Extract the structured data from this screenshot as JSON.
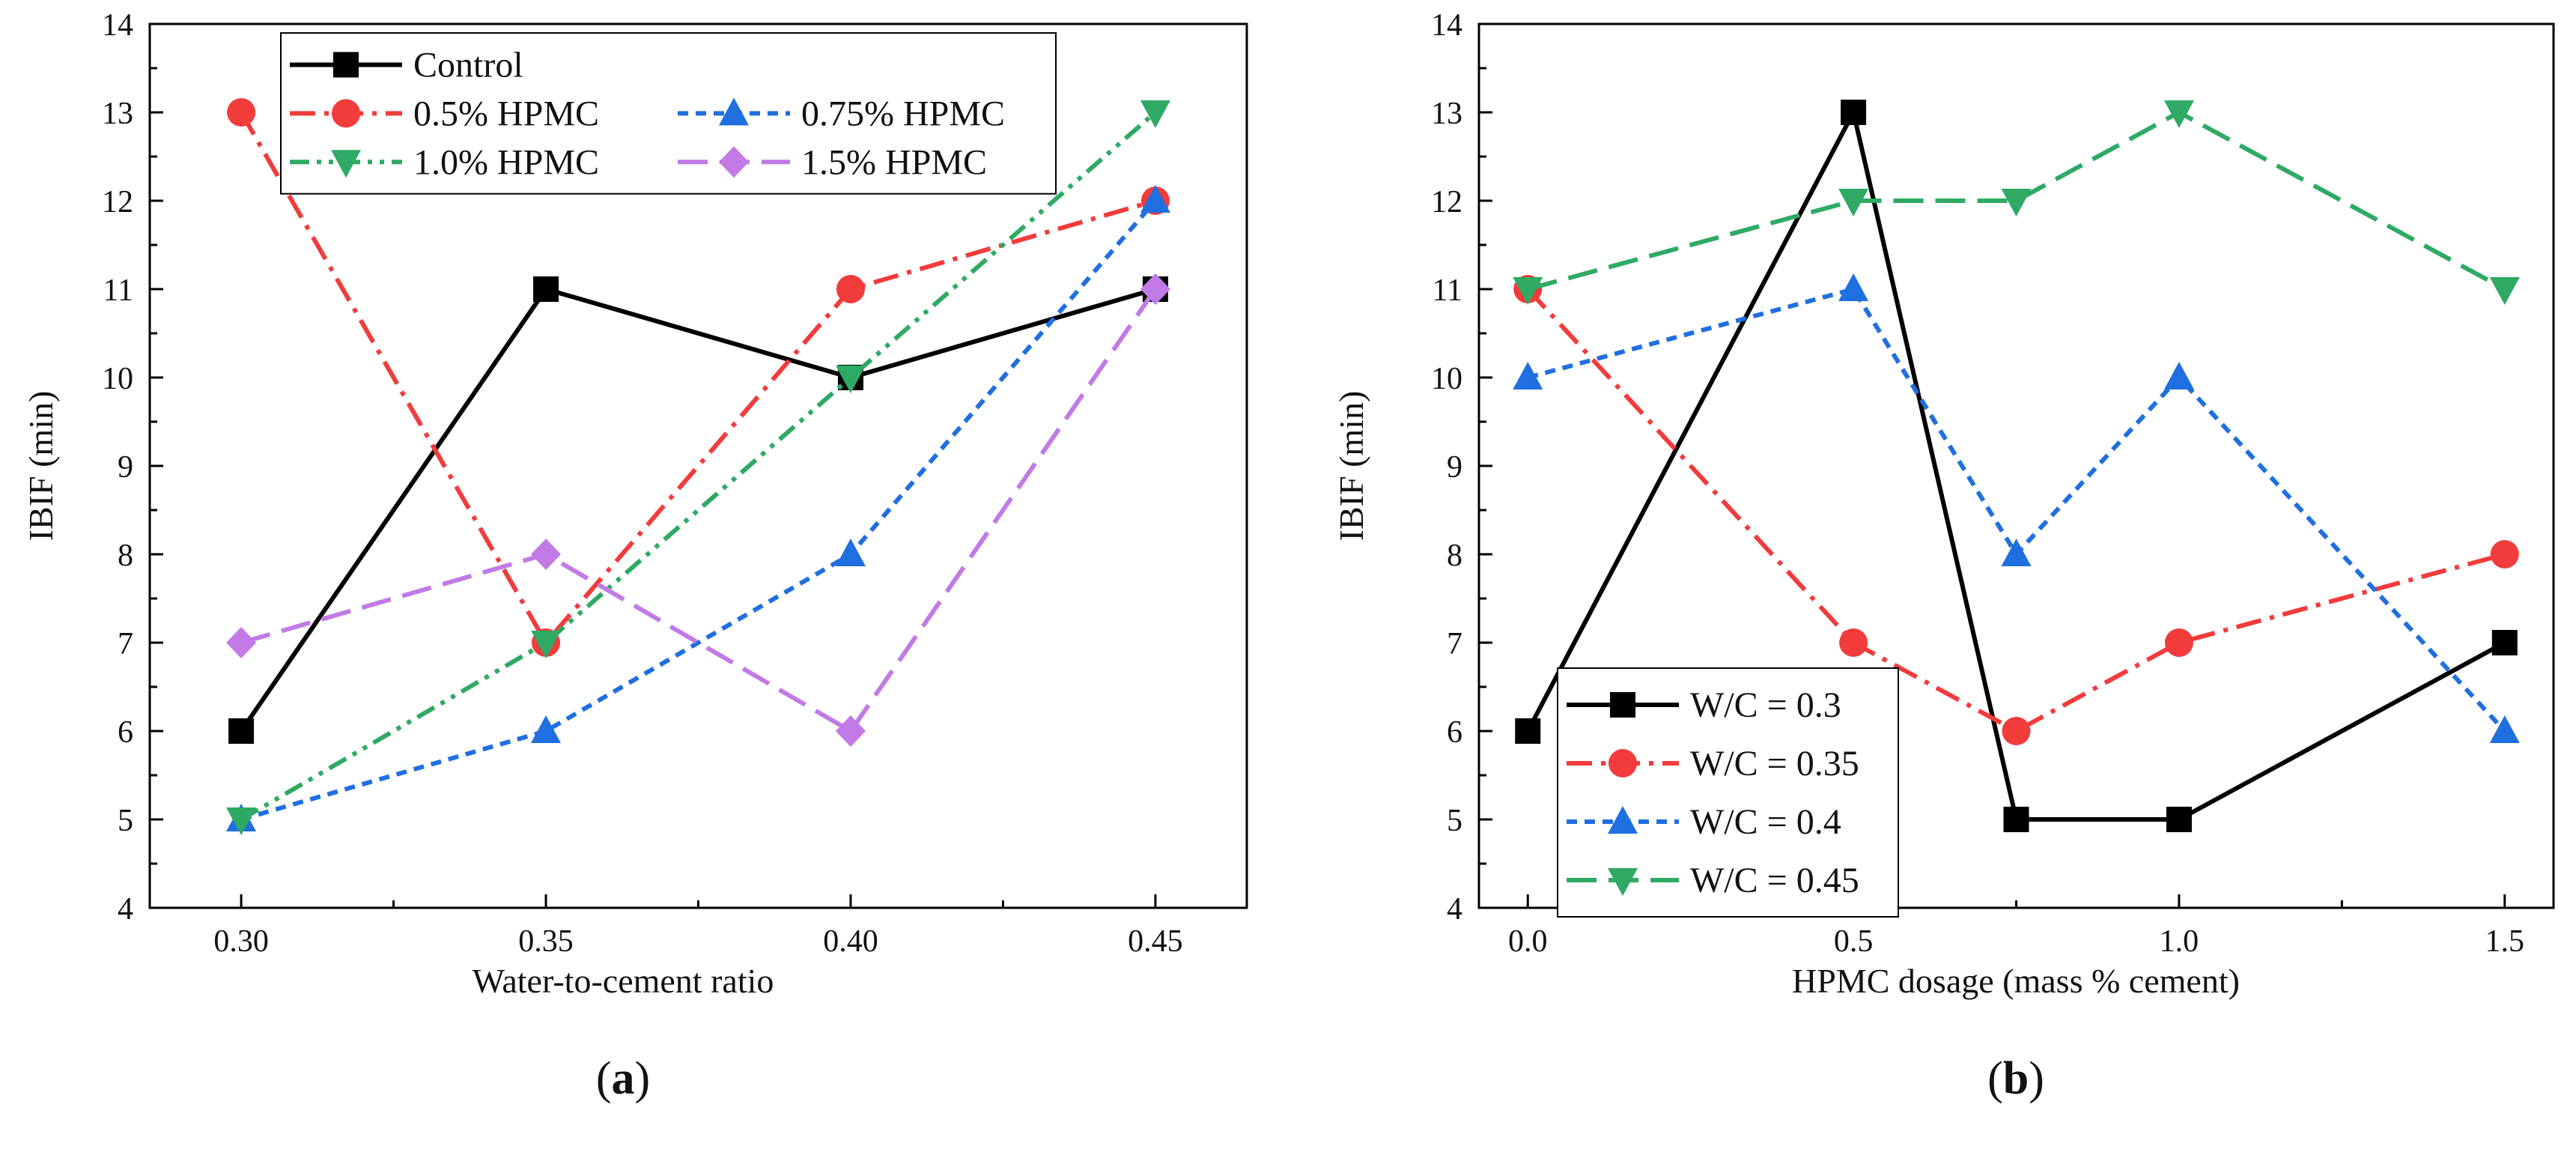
{
  "chart_data": [
    {
      "type": "line",
      "panel": "a",
      "panel_label": "a",
      "xlabel": "Water-to-cement ratio",
      "ylabel": "IBIF (min)",
      "xlim": [
        0.285,
        0.465
      ],
      "ylim": [
        4,
        14
      ],
      "xticks": [
        "0.30",
        "0.35",
        "0.40",
        "0.45"
      ],
      "xtick_values": [
        0.3,
        0.35,
        0.4,
        0.45
      ],
      "yticks": [
        "4",
        "5",
        "6",
        "7",
        "8",
        "9",
        "10",
        "11",
        "12",
        "13",
        "14"
      ],
      "ytick_values": [
        4,
        5,
        6,
        7,
        8,
        9,
        10,
        11,
        12,
        13,
        14
      ],
      "legend_position": "top-center",
      "x": [
        0.3,
        0.35,
        0.4,
        0.45
      ],
      "series": [
        {
          "name": "Control",
          "values": [
            6,
            11,
            10,
            11
          ],
          "color": "#000000",
          "marker": "square",
          "dash": "solid"
        },
        {
          "name": "0.5% HPMC",
          "values": [
            13,
            7,
            11,
            12
          ],
          "color": "#f23b3b",
          "marker": "circle",
          "dash": "dashdot"
        },
        {
          "name": "0.75% HPMC",
          "values": [
            5,
            6,
            8,
            12
          ],
          "color": "#1f6fe0",
          "marker": "triangle-up",
          "dash": "shortdash"
        },
        {
          "name": "1.0% HPMC",
          "values": [
            5,
            7,
            10,
            13
          ],
          "color": "#2eaa64",
          "marker": "triangle-down",
          "dash": "dashdotdot"
        },
        {
          "name": "1.5% HPMC",
          "values": [
            7,
            8,
            6,
            11
          ],
          "color": "#c27ae6",
          "marker": "diamond",
          "dash": "longdash"
        }
      ]
    },
    {
      "type": "line",
      "panel": "b",
      "panel_label": "b",
      "xlabel": "HPMC dosage (mass % cement)",
      "ylabel": "IBIF (min)",
      "xlim": [
        -0.075,
        1.575
      ],
      "ylim": [
        4,
        14
      ],
      "xticks": [
        "0.0",
        "0.5",
        "1.0",
        "1.5"
      ],
      "xtick_values": [
        0.0,
        0.5,
        1.0,
        1.5
      ],
      "yticks": [
        "4",
        "5",
        "6",
        "7",
        "8",
        "9",
        "10",
        "11",
        "12",
        "13",
        "14"
      ],
      "ytick_values": [
        4,
        5,
        6,
        7,
        8,
        9,
        10,
        11,
        12,
        13,
        14
      ],
      "legend_position": "bottom-left",
      "x": [
        0.0,
        0.5,
        0.75,
        1.0,
        1.5
      ],
      "series": [
        {
          "name": "W/C = 0.3",
          "values": [
            6,
            13,
            5,
            5,
            7
          ],
          "color": "#000000",
          "marker": "square",
          "dash": "solid"
        },
        {
          "name": "W/C = 0.35",
          "values": [
            11,
            7,
            6,
            7,
            8
          ],
          "color": "#f23b3b",
          "marker": "circle",
          "dash": "dashdot"
        },
        {
          "name": "W/C = 0.4",
          "values": [
            10,
            11,
            8,
            10,
            6
          ],
          "color": "#1f6fe0",
          "marker": "triangle-up",
          "dash": "shortdash"
        },
        {
          "name": "W/C = 0.45",
          "values": [
            11,
            12,
            12,
            13,
            11
          ],
          "color": "#2eaa64",
          "marker": "triangle-down",
          "dash": "longdash"
        }
      ]
    }
  ]
}
